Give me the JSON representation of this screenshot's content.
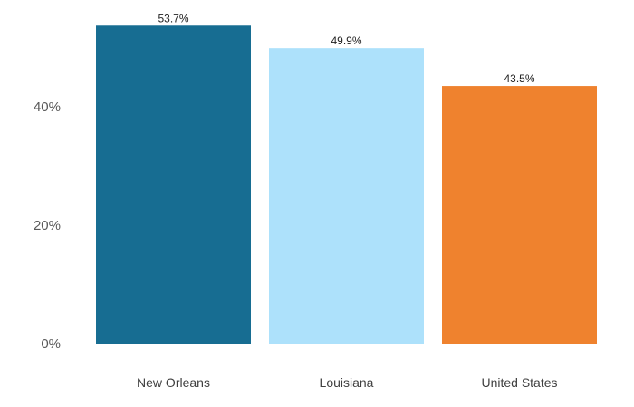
{
  "chart_data": {
    "type": "bar",
    "title": "",
    "xlabel": "",
    "ylabel": "",
    "categories": [
      "New Orleans",
      "Louisiana",
      "United States"
    ],
    "values": [
      53.7,
      49.9,
      43.5
    ],
    "data_labels": [
      "53.7%",
      "49.9%",
      "43.5%"
    ],
    "colors": [
      "#176d92",
      "#ade1fb",
      "#ef822e"
    ],
    "ylim": [
      0,
      58
    ],
    "yticks": [
      0,
      20,
      40
    ],
    "ytick_labels": [
      "0%",
      "20%",
      "40%"
    ],
    "grid": false,
    "legend": "none"
  }
}
